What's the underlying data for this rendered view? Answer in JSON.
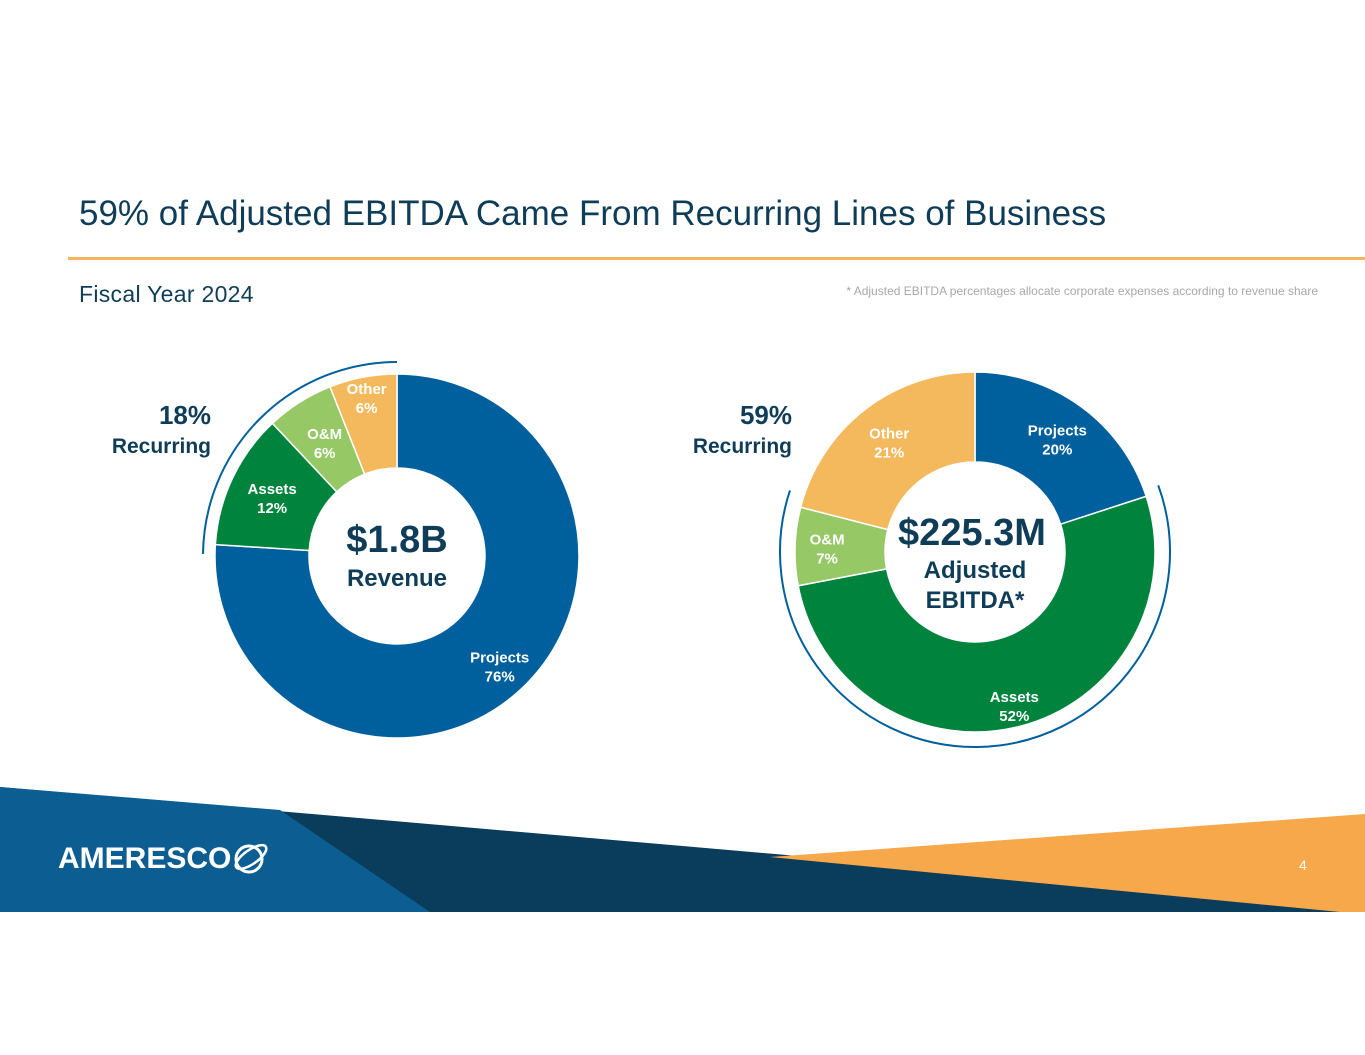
{
  "title": "59% of Adjusted EBITDA Came From Recurring Lines of Business",
  "subtitle": "Fiscal Year 2024",
  "footnote": "* Adjusted EBITDA percentages allocate corporate expenses according to revenue share",
  "page_number": "4",
  "logo_text": "AMERESCO",
  "colors": {
    "projects": "#00609e",
    "assets": "#00843d",
    "om": "#96c866",
    "other": "#f4b95c",
    "label_dark": "#0f3d57",
    "arc": "#00609e",
    "footer_blue": "#0b5d92",
    "footer_navy": "#0a3d5c",
    "footer_orange": "#f7a84a"
  },
  "chart_data": [
    {
      "type": "pie",
      "title": "Revenue",
      "center_value": "$1.8B",
      "center_label": "Revenue",
      "recurring_pct": "18%",
      "recurring_label": "Recurring",
      "slices": [
        {
          "name": "Projects",
          "value": 76,
          "label": "76%"
        },
        {
          "name": "Assets",
          "value": 12,
          "label": "12%"
        },
        {
          "name": "O&M",
          "value": 6,
          "label": "6%"
        },
        {
          "name": "Other",
          "value": 6,
          "label": "6%"
        }
      ]
    },
    {
      "type": "pie",
      "title": "Adjusted EBITDA",
      "center_value": "$225.3M",
      "center_label_line1": "Adjusted",
      "center_label_line2": "EBITDA*",
      "recurring_pct": "59%",
      "recurring_label": "Recurring",
      "slices": [
        {
          "name": "Projects",
          "value": 20,
          "label": "20%"
        },
        {
          "name": "Assets",
          "value": 52,
          "label": "52%"
        },
        {
          "name": "O&M",
          "value": 7,
          "label": "7%"
        },
        {
          "name": "Other",
          "value": 21,
          "label": "21%"
        }
      ]
    }
  ]
}
